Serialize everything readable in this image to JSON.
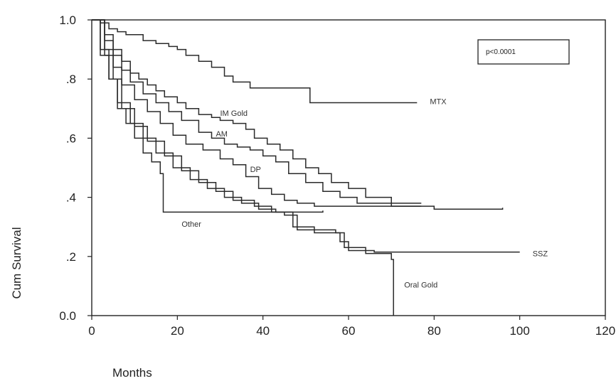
{
  "chart_data": {
    "type": "line",
    "step": true,
    "xlabel": "Months",
    "ylabel": "Cum Survival",
    "xlim": [
      0,
      120
    ],
    "ylim": [
      0,
      1
    ],
    "x_ticks": [
      {
        "value": 0,
        "label": "0"
      },
      {
        "value": 20,
        "label": "20"
      },
      {
        "value": 40,
        "label": "40"
      },
      {
        "value": 60,
        "label": "60"
      },
      {
        "value": 80,
        "label": "80"
      },
      {
        "value": 100,
        "label": "100"
      },
      {
        "value": 120,
        "label": "120"
      }
    ],
    "y_ticks": [
      {
        "value": 0,
        "label": "0.0"
      },
      {
        "value": 0.2,
        "label": ".2"
      },
      {
        "value": 0.4,
        "label": ".4"
      },
      {
        "value": 0.6,
        "label": ".6"
      },
      {
        "value": 0.8,
        "label": ".8"
      },
      {
        "value": 1.0,
        "label": "1.0"
      }
    ],
    "grid": false,
    "legend": "none",
    "annotation": "p<0.0001",
    "series": [
      {
        "name": "MTX",
        "color": "#2a2a2a",
        "points": [
          [
            0,
            1
          ],
          [
            2,
            0.99
          ],
          [
            4,
            0.97
          ],
          [
            6,
            0.96
          ],
          [
            8,
            0.95
          ],
          [
            12,
            0.93
          ],
          [
            15,
            0.92
          ],
          [
            18,
            0.91
          ],
          [
            20,
            0.9
          ],
          [
            22,
            0.88
          ],
          [
            25,
            0.86
          ],
          [
            28,
            0.84
          ],
          [
            31,
            0.81
          ],
          [
            33,
            0.79
          ],
          [
            37,
            0.77
          ],
          [
            51,
            0.72
          ],
          [
            76,
            0.72
          ]
        ],
        "label_at": [
          79,
          0.725
        ]
      },
      {
        "name": "IM Gold",
        "color": "#2a2a2a",
        "points": [
          [
            0,
            1
          ],
          [
            3,
            0.95
          ],
          [
            5,
            0.9
          ],
          [
            7,
            0.86
          ],
          [
            9,
            0.82
          ],
          [
            11,
            0.8
          ],
          [
            13,
            0.78
          ],
          [
            15,
            0.76
          ],
          [
            17,
            0.74
          ],
          [
            20,
            0.72
          ],
          [
            22,
            0.7
          ],
          [
            25,
            0.68
          ],
          [
            28,
            0.67
          ],
          [
            30,
            0.66
          ],
          [
            33,
            0.65
          ],
          [
            36,
            0.63
          ],
          [
            38,
            0.6
          ],
          [
            41,
            0.58
          ],
          [
            44,
            0.56
          ],
          [
            47,
            0.53
          ],
          [
            50,
            0.5
          ],
          [
            53,
            0.48
          ],
          [
            56,
            0.45
          ],
          [
            60,
            0.43
          ],
          [
            64,
            0.4
          ],
          [
            70,
            0.38
          ],
          [
            77,
            0.38
          ]
        ],
        "label_at": [
          30,
          0.685
        ]
      },
      {
        "name": "AM",
        "color": "#2a2a2a",
        "points": [
          [
            0,
            1
          ],
          [
            3,
            0.93
          ],
          [
            5,
            0.88
          ],
          [
            7,
            0.83
          ],
          [
            9,
            0.79
          ],
          [
            12,
            0.75
          ],
          [
            15,
            0.72
          ],
          [
            18,
            0.69
          ],
          [
            21,
            0.66
          ],
          [
            25,
            0.62
          ],
          [
            28,
            0.6
          ],
          [
            31,
            0.58
          ],
          [
            34,
            0.57
          ],
          [
            37,
            0.56
          ],
          [
            40,
            0.54
          ],
          [
            43,
            0.52
          ],
          [
            46,
            0.48
          ],
          [
            50,
            0.45
          ],
          [
            54,
            0.42
          ],
          [
            58,
            0.4
          ],
          [
            62,
            0.38
          ],
          [
            70,
            0.37
          ],
          [
            77,
            0.37
          ]
        ],
        "label_at": [
          29,
          0.615
        ]
      },
      {
        "name": "DP",
        "color": "#2a2a2a",
        "points": [
          [
            0,
            1
          ],
          [
            3,
            0.9
          ],
          [
            5,
            0.84
          ],
          [
            7,
            0.78
          ],
          [
            10,
            0.73
          ],
          [
            13,
            0.69
          ],
          [
            16,
            0.65
          ],
          [
            19,
            0.61
          ],
          [
            22,
            0.58
          ],
          [
            26,
            0.56
          ],
          [
            30,
            0.53
          ],
          [
            33,
            0.51
          ],
          [
            36,
            0.47
          ],
          [
            39,
            0.43
          ],
          [
            42,
            0.41
          ],
          [
            45,
            0.39
          ],
          [
            48,
            0.38
          ],
          [
            52,
            0.37
          ],
          [
            60,
            0.37
          ],
          [
            80,
            0.36
          ],
          [
            96,
            0.365
          ]
        ],
        "label_at": [
          37,
          0.495
        ]
      },
      {
        "name": "Other",
        "color": "#2a2a2a",
        "points": [
          [
            0,
            1
          ],
          [
            2,
            0.88
          ],
          [
            4,
            0.8
          ],
          [
            6,
            0.7
          ],
          [
            8,
            0.65
          ],
          [
            10,
            0.6
          ],
          [
            12,
            0.55
          ],
          [
            14,
            0.52
          ],
          [
            16,
            0.48
          ],
          [
            16.7,
            0.35
          ],
          [
            30,
            0.35
          ],
          [
            40,
            0.35
          ],
          [
            54,
            0.355
          ]
        ],
        "label_at": [
          21,
          0.31
        ]
      },
      {
        "name": "SSZ",
        "color": "#2a2a2a",
        "points": [
          [
            0,
            1
          ],
          [
            2,
            0.9
          ],
          [
            4,
            0.8
          ],
          [
            6,
            0.72
          ],
          [
            9,
            0.65
          ],
          [
            12,
            0.6
          ],
          [
            15,
            0.55
          ],
          [
            19,
            0.5
          ],
          [
            23,
            0.46
          ],
          [
            27,
            0.43
          ],
          [
            31,
            0.4
          ],
          [
            35,
            0.38
          ],
          [
            39,
            0.36
          ],
          [
            43,
            0.35
          ],
          [
            47,
            0.3
          ],
          [
            52,
            0.28
          ],
          [
            58,
            0.25
          ],
          [
            60,
            0.22
          ],
          [
            66,
            0.215
          ],
          [
            100,
            0.215
          ]
        ],
        "label_at": [
          103,
          0.21
        ]
      },
      {
        "name": "Oral Gold",
        "color": "#2a2a2a",
        "points": [
          [
            0,
            1
          ],
          [
            3,
            0.88
          ],
          [
            5,
            0.8
          ],
          [
            7,
            0.7
          ],
          [
            10,
            0.64
          ],
          [
            13,
            0.59
          ],
          [
            17,
            0.54
          ],
          [
            21,
            0.49
          ],
          [
            25,
            0.45
          ],
          [
            29,
            0.42
          ],
          [
            33,
            0.39
          ],
          [
            38,
            0.37
          ],
          [
            42,
            0.35
          ],
          [
            45,
            0.34
          ],
          [
            48,
            0.29
          ],
          [
            57,
            0.28
          ],
          [
            59,
            0.23
          ],
          [
            64,
            0.21
          ],
          [
            70,
            0.19
          ],
          [
            70.5,
            0
          ],
          [
            70.5,
            0
          ]
        ],
        "label_at": [
          73,
          0.105
        ]
      }
    ]
  }
}
